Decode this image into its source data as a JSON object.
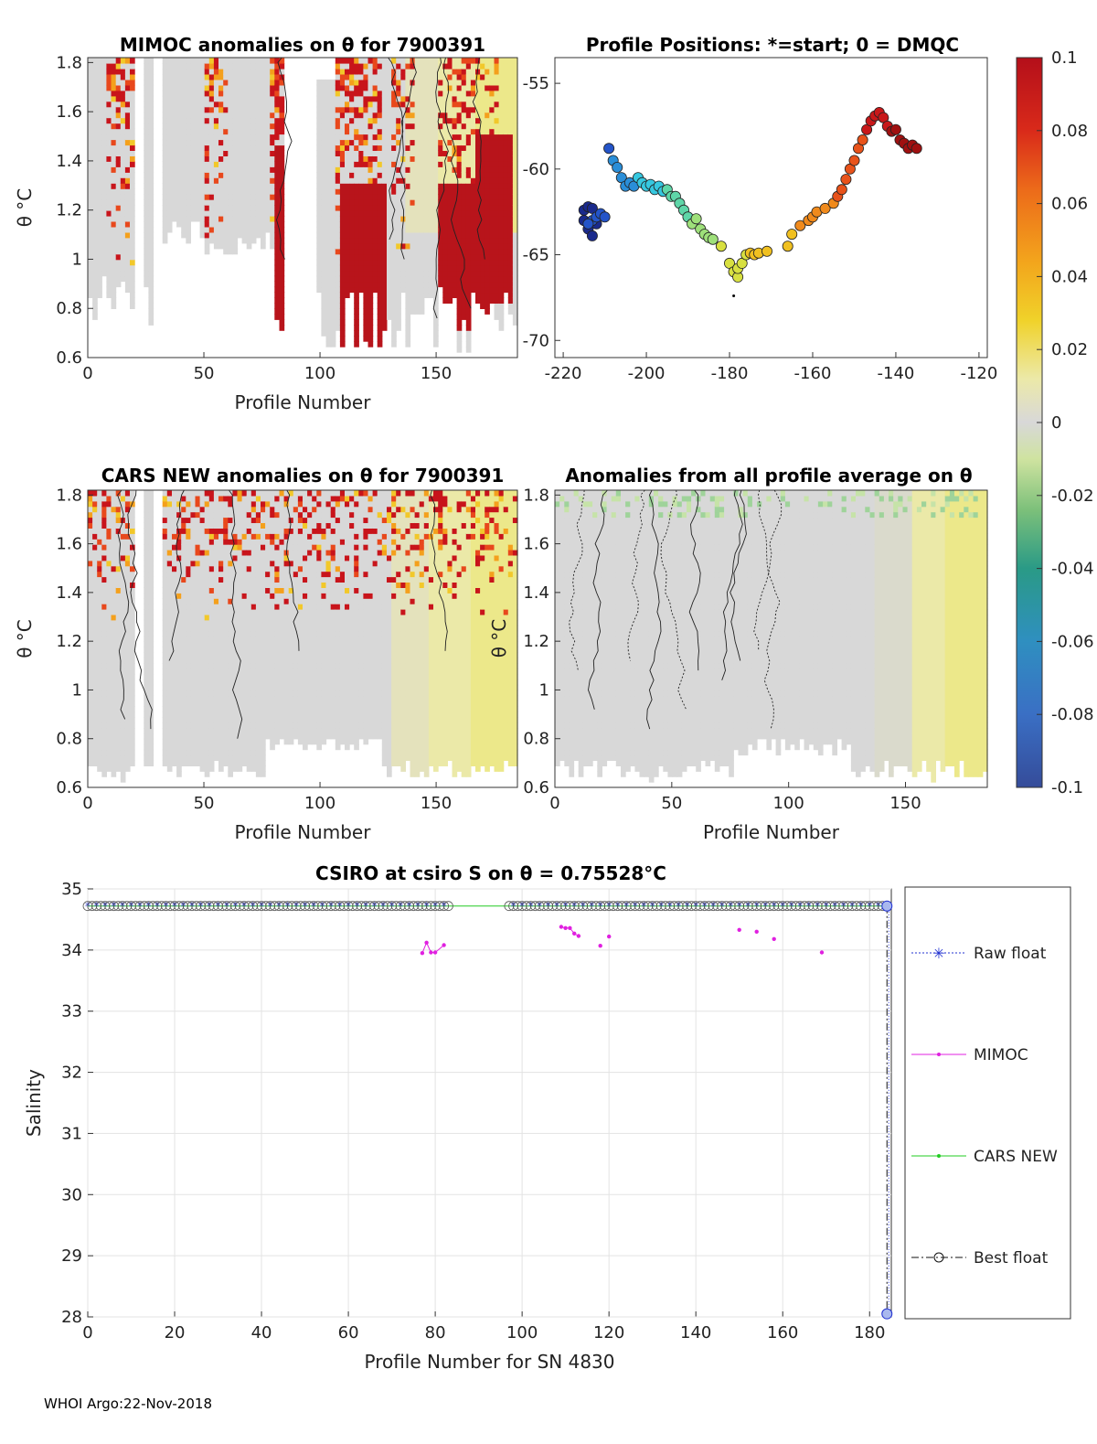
{
  "footer": "WHOI Argo:22-Nov-2018",
  "colorbar": {
    "type": "colorbar",
    "ticks": [
      "0.1",
      "0.08",
      "0.06",
      "0.04",
      "0.02",
      "0",
      "-0.02",
      "-0.04",
      "-0.06",
      "-0.08",
      "-0.1"
    ],
    "range": [
      -0.1,
      0.1
    ]
  },
  "chart_data": [
    {
      "type": "heatmap",
      "id": "mimoc",
      "title": "MIMOC anomalies on θ  for 7900391",
      "xlabel": "Profile Number",
      "ylabel": "θ °C",
      "xlim": [
        0,
        185
      ],
      "ylim": [
        0.6,
        1.82
      ],
      "xticks": [
        "0",
        "50",
        "100",
        "150"
      ],
      "yticks": [
        "0.6",
        "0.8",
        "1",
        "1.2",
        "1.4",
        "1.6",
        "1.8"
      ]
    },
    {
      "type": "scatter",
      "id": "positions",
      "title": "Profile Positions: *=start; 0 = DMQC",
      "xlim": [
        -222,
        -118
      ],
      "ylim": [
        -71,
        -53.5
      ],
      "xticks": [
        "-220",
        "-200",
        "-180",
        "-160",
        "-140",
        "-120"
      ],
      "yticks": [
        "-55",
        "-60",
        "-65",
        "-70"
      ],
      "points": [
        [
          -215,
          -62.4
        ],
        [
          -214,
          -62.2
        ],
        [
          -213,
          -62.3
        ],
        [
          -215,
          -63.0
        ],
        [
          -214,
          -63.5
        ],
        [
          -213,
          -63.9
        ],
        [
          -212,
          -63.2
        ],
        [
          -213,
          -63.0
        ],
        [
          -214,
          -63.2
        ],
        [
          -212,
          -62.8
        ],
        [
          -211,
          -62.6
        ],
        [
          -210,
          -62.8
        ],
        [
          -209,
          -58.8
        ],
        [
          -208,
          -59.5
        ],
        [
          -207,
          -59.9
        ],
        [
          -206,
          -60.5
        ],
        [
          -205,
          -61.0
        ],
        [
          -204,
          -60.8
        ],
        [
          -203,
          -61.0
        ],
        [
          -202,
          -60.5
        ],
        [
          -201,
          -60.8
        ],
        [
          -200,
          -61.0
        ],
        [
          -199,
          -60.9
        ],
        [
          -198,
          -61.2
        ],
        [
          -197,
          -61.0
        ],
        [
          -196,
          -61.3
        ],
        [
          -195,
          -61.2
        ],
        [
          -194,
          -61.6
        ],
        [
          -193,
          -61.6
        ],
        [
          -192,
          -62.0
        ],
        [
          -191,
          -62.4
        ],
        [
          -190,
          -62.8
        ],
        [
          -189,
          -63.2
        ],
        [
          -188,
          -62.9
        ],
        [
          -187,
          -63.5
        ],
        [
          -186,
          -63.8
        ],
        [
          -185,
          -64.0
        ],
        [
          -184,
          -64.1
        ],
        [
          -182,
          -64.5
        ],
        [
          -180,
          -65.5
        ],
        [
          -179,
          -66.0
        ],
        [
          -178,
          -66.3
        ],
        [
          -178,
          -65.8
        ],
        [
          -177,
          -65.5
        ],
        [
          -176,
          -65.0
        ],
        [
          -175,
          -64.9
        ],
        [
          -174,
          -65.0
        ],
        [
          -173,
          -64.9
        ],
        [
          -171,
          -64.8
        ],
        [
          -166,
          -64.5
        ],
        [
          -165,
          -63.8
        ],
        [
          -163,
          -63.3
        ],
        [
          -161,
          -63.0
        ],
        [
          -160,
          -62.8
        ],
        [
          -159,
          -62.5
        ],
        [
          -157,
          -62.3
        ],
        [
          -155,
          -62.0
        ],
        [
          -154,
          -61.6
        ],
        [
          -153,
          -61.2
        ],
        [
          -152,
          -60.6
        ],
        [
          -151,
          -60.0
        ],
        [
          -150,
          -59.5
        ],
        [
          -149,
          -58.8
        ],
        [
          -148,
          -58.3
        ],
        [
          -147,
          -57.7
        ],
        [
          -146,
          -57.2
        ],
        [
          -145,
          -56.9
        ],
        [
          -144,
          -56.7
        ],
        [
          -143,
          -57.0
        ],
        [
          -142,
          -57.5
        ],
        [
          -141,
          -57.8
        ],
        [
          -140,
          -57.7
        ],
        [
          -139,
          -58.3
        ],
        [
          -138,
          -58.5
        ],
        [
          -137,
          -58.8
        ],
        [
          -136,
          -58.6
        ],
        [
          -135,
          -58.8
        ]
      ]
    },
    {
      "type": "heatmap",
      "id": "cars",
      "title": "CARS NEW anomalies on θ for 7900391",
      "xlabel": "Profile Number",
      "ylabel": "θ °C",
      "xlim": [
        0,
        185
      ],
      "ylim": [
        0.6,
        1.82
      ],
      "xticks": [
        "0",
        "50",
        "100",
        "150"
      ],
      "yticks": [
        "0.6",
        "0.8",
        "1",
        "1.2",
        "1.4",
        "1.6",
        "1.8"
      ]
    },
    {
      "type": "heatmap",
      "id": "avg",
      "title": "Anomalies from all profile average on θ",
      "xlabel": "Profile Number",
      "ylabel": "θ °C",
      "xlim": [
        0,
        185
      ],
      "ylim": [
        0.6,
        1.82
      ],
      "xticks": [
        "0",
        "50",
        "100",
        "150"
      ],
      "yticks": [
        "0.6",
        "0.8",
        "1",
        "1.2",
        "1.4",
        "1.6",
        "1.8"
      ]
    },
    {
      "type": "line",
      "id": "salinity",
      "title": "CSIRO at csiro S on θ = 0.75528°C",
      "xlabel": "Profile Number for SN 4830",
      "ylabel": "Salinity",
      "xlim": [
        0,
        185
      ],
      "ylim": [
        28,
        35
      ],
      "xticks": [
        "0",
        "20",
        "40",
        "60",
        "80",
        "100",
        "120",
        "140",
        "160",
        "180"
      ],
      "yticks": [
        "35",
        "34",
        "33",
        "32",
        "31",
        "30",
        "29",
        "28"
      ],
      "legend": [
        "Raw float",
        "MIMOC",
        "CARS NEW",
        "Best float"
      ],
      "series": [
        {
          "name": "Raw float",
          "style": "dotted-blue-star",
          "value": 34.72
        },
        {
          "name": "CARS NEW",
          "style": "solid-green-dot",
          "value": 34.72
        },
        {
          "name": "Best float",
          "style": "dashdot-black-circle",
          "value": 34.72,
          "last": {
            "x": 184,
            "y": 28.05
          }
        },
        {
          "name": "MIMOC",
          "style": "solid-magenta-dot",
          "points": [
            [
              77,
              33.95
            ],
            [
              78,
              34.12
            ],
            [
              79,
              33.96
            ],
            [
              80,
              33.96
            ],
            [
              82,
              34.08
            ],
            [
              109,
              34.38
            ],
            [
              110,
              34.36
            ],
            [
              111,
              34.36
            ],
            [
              112,
              34.27
            ],
            [
              113,
              34.23
            ],
            [
              118,
              34.07
            ],
            [
              120,
              34.22
            ],
            [
              150,
              34.33
            ],
            [
              154,
              34.3
            ],
            [
              158,
              34.18
            ],
            [
              169,
              33.96
            ]
          ]
        }
      ]
    }
  ]
}
